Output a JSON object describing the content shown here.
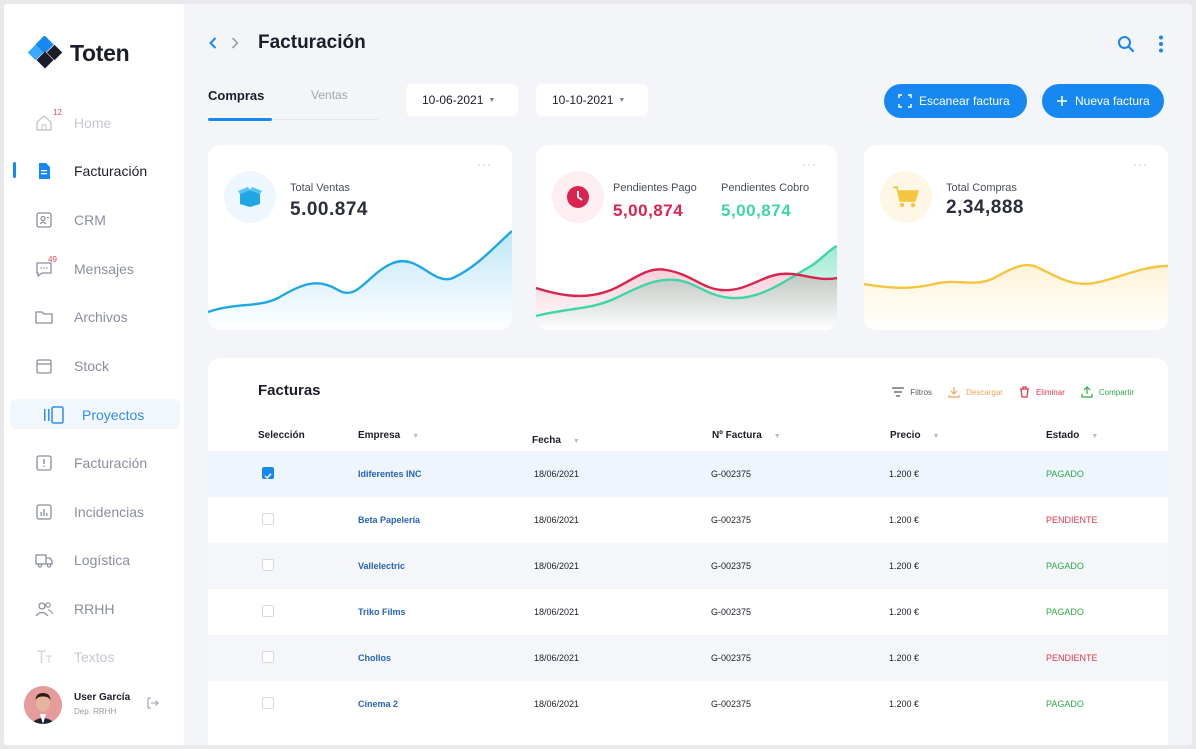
{
  "app": {
    "name": "Toten"
  },
  "sidebar": {
    "items": [
      {
        "label": "Home",
        "badge": "12"
      },
      {
        "label": "Facturación"
      },
      {
        "label": "CRM"
      },
      {
        "label": "Mensajes",
        "badge": "49"
      },
      {
        "label": "Archivos"
      },
      {
        "label": "Stock"
      },
      {
        "label": "Proyectos"
      },
      {
        "label": "Facturación"
      },
      {
        "label": "Incidencias"
      },
      {
        "label": "Logística"
      },
      {
        "label": "RRHH"
      },
      {
        "label": "Textos"
      }
    ],
    "user": {
      "name": "User García",
      "dept": "Dep. RRHH"
    }
  },
  "header": {
    "title": "Facturación"
  },
  "tabs": [
    {
      "label": "Compras"
    },
    {
      "label": "Ventas"
    }
  ],
  "filters": {
    "date_from": "10-06-2021",
    "date_to": "10-10-2021"
  },
  "buttons": {
    "scan": "Escanear factura",
    "new": "Nueva factura"
  },
  "cards": {
    "ventas": {
      "label": "Total Ventas",
      "value": "5.00.874"
    },
    "pendientes": {
      "pago_label": "Pendientes Pago",
      "pago_value": "5,00,874",
      "cobro_label": "Pendientes Cobro",
      "cobro_value": "5,00,874"
    },
    "compras": {
      "label": "Total Compras",
      "value": "2,34,888"
    },
    "menu": "···"
  },
  "table": {
    "title": "Facturas",
    "actions": {
      "filtros": "Filtros",
      "descargar": "Descargar",
      "eliminar": "Eliminar",
      "compartir": "Compartir"
    },
    "headers": {
      "seleccion": "Selección",
      "empresa": "Empresa",
      "fecha": "Fecha",
      "factura": "Nº Factura",
      "precio": "Precio",
      "estado": "Estado"
    },
    "rows": [
      {
        "selected": true,
        "empresa": "Idiferentes INC",
        "fecha": "18/06/2021",
        "factura": "G-002375",
        "precio": "1.200 €",
        "estado": "PAGADO"
      },
      {
        "selected": false,
        "empresa": "Beta Papelería",
        "fecha": "18/06/2021",
        "factura": "G-002375",
        "precio": "1.200 €",
        "estado": "PENDIENTE"
      },
      {
        "selected": false,
        "empresa": "Vallelectric",
        "fecha": "18/06/2021",
        "factura": "G-002375",
        "precio": "1.200 €",
        "estado": "PAGADO"
      },
      {
        "selected": false,
        "empresa": "Triko Films",
        "fecha": "18/06/2021",
        "factura": "G-002375",
        "precio": "1.200 €",
        "estado": "PAGADO"
      },
      {
        "selected": false,
        "empresa": "Chollos",
        "fecha": "18/06/2021",
        "factura": "G-002375",
        "precio": "1.200 €",
        "estado": "PENDIENTE"
      },
      {
        "selected": false,
        "empresa": "Cinema 2",
        "fecha": "18/06/2021",
        "factura": "G-002375",
        "precio": "1.200 €",
        "estado": "PAGADO"
      }
    ]
  },
  "colors": {
    "accent": "#1788f2",
    "pagado": "#2bab4a",
    "pendiente": "#e0374a",
    "ventas": "#1fa7e4",
    "pago": "#d8244f",
    "cobro": "#3fd6a6",
    "compras": "#f5c53f"
  }
}
